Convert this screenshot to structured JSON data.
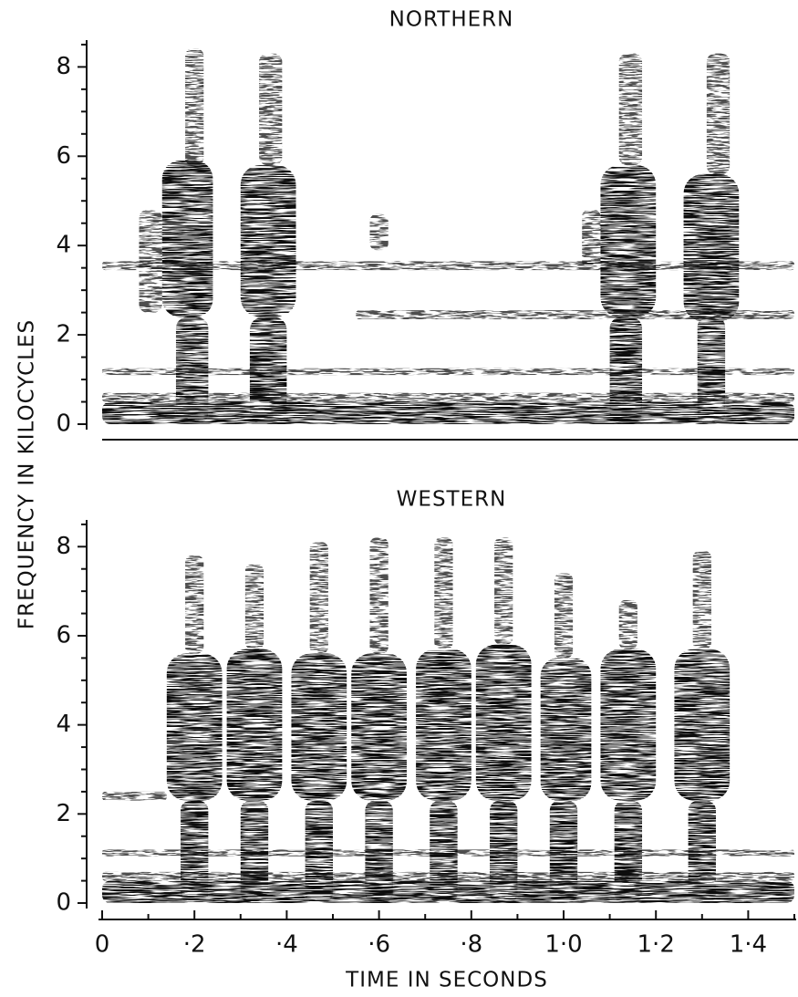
{
  "chart_data": [
    {
      "type": "spectrogram",
      "title": "NORTHERN",
      "ylabel": "FREQUENCY IN KILOCYCLES",
      "xlim": [
        0,
        1.5
      ],
      "ylim": [
        0,
        8.6
      ],
      "yticks": [
        0,
        2,
        4,
        6,
        8
      ],
      "yminorticks": [
        0.5,
        1,
        1.5,
        2.5,
        3,
        3.5,
        4.5,
        5,
        5.5,
        6.5,
        7,
        7.5,
        8.5
      ],
      "dense": [
        [
          0.13,
          0.24,
          2.4,
          5.9
        ],
        [
          0.3,
          0.42,
          2.4,
          5.8
        ],
        [
          1.08,
          1.2,
          2.4,
          5.8
        ],
        [
          1.26,
          1.38,
          2.3,
          5.6
        ],
        [
          0.16,
          0.23,
          0,
          2.4
        ],
        [
          0.32,
          0.4,
          0,
          2.4
        ],
        [
          1.1,
          1.17,
          0,
          2.4
        ],
        [
          1.29,
          1.35,
          0,
          2.4
        ],
        [
          0,
          1.5,
          0,
          0.5
        ]
      ],
      "sparse": [
        [
          0.18,
          0.22,
          5.8,
          8.4
        ],
        [
          0.34,
          0.39,
          5.8,
          8.3
        ],
        [
          1.12,
          1.17,
          5.8,
          8.3
        ],
        [
          1.31,
          1.36,
          5.6,
          8.3
        ],
        [
          0,
          1.5,
          3.45,
          3.65
        ],
        [
          0.55,
          1.5,
          2.35,
          2.55
        ],
        [
          0,
          1.5,
          1.1,
          1.25
        ],
        [
          0,
          1.5,
          0.5,
          0.7
        ],
        [
          0.58,
          0.62,
          3.9,
          4.7
        ],
        [
          0.08,
          0.13,
          2.5,
          4.8
        ],
        [
          1.04,
          1.08,
          3.5,
          4.8
        ]
      ]
    },
    {
      "type": "spectrogram",
      "title": "WESTERN",
      "xlabel": "TIME IN SECONDS",
      "xlim": [
        0,
        1.5
      ],
      "ylim": [
        0,
        8.6
      ],
      "yticks": [
        0,
        2,
        4,
        6,
        8
      ],
      "yminorticks": [
        0.5,
        1,
        1.5,
        2.5,
        3,
        3.5,
        4.5,
        5,
        5.5,
        6.5,
        7,
        7.5,
        8.5
      ],
      "xticks": [
        0,
        {
          "value": 0.2,
          "label": "·2"
        },
        {
          "value": 0.4,
          "label": "·4"
        },
        {
          "value": 0.6,
          "label": "·6"
        },
        {
          "value": 0.8,
          "label": "·8"
        },
        {
          "value": 1.0,
          "label": "1·0"
        },
        {
          "value": 1.2,
          "label": "1·2"
        },
        {
          "value": 1.4,
          "label": "1·4"
        }
      ],
      "xminorticks": [
        0.1,
        0.3,
        0.5,
        0.7,
        0.9,
        1.1,
        1.3,
        1.5
      ],
      "dense": [
        [
          0.14,
          0.26,
          2.3,
          5.6
        ],
        [
          0.27,
          0.39,
          2.3,
          5.7
        ],
        [
          0.41,
          0.53,
          2.3,
          5.6
        ],
        [
          0.54,
          0.66,
          2.3,
          5.6
        ],
        [
          0.68,
          0.8,
          2.3,
          5.7
        ],
        [
          0.81,
          0.93,
          2.3,
          5.8
        ],
        [
          0.95,
          1.06,
          2.3,
          5.5
        ],
        [
          1.08,
          1.2,
          2.3,
          5.7
        ],
        [
          1.24,
          1.36,
          2.3,
          5.7
        ],
        [
          0.17,
          0.23,
          0,
          2.3
        ],
        [
          0.3,
          0.36,
          0,
          2.3
        ],
        [
          0.44,
          0.5,
          0,
          2.3
        ],
        [
          0.57,
          0.63,
          0,
          2.3
        ],
        [
          0.71,
          0.77,
          0,
          2.3
        ],
        [
          0.84,
          0.9,
          0,
          2.3
        ],
        [
          0.97,
          1.03,
          0,
          2.3
        ],
        [
          1.11,
          1.17,
          0,
          2.3
        ],
        [
          1.27,
          1.33,
          0,
          2.3
        ],
        [
          0,
          1.5,
          0,
          0.5
        ]
      ],
      "sparse": [
        [
          0.18,
          0.22,
          5.6,
          7.8
        ],
        [
          0.31,
          0.35,
          5.7,
          7.6
        ],
        [
          0.45,
          0.49,
          5.6,
          8.1
        ],
        [
          0.58,
          0.62,
          5.6,
          8.2
        ],
        [
          0.72,
          0.76,
          5.7,
          8.2
        ],
        [
          0.85,
          0.89,
          5.8,
          8.2
        ],
        [
          0.98,
          1.02,
          5.5,
          7.4
        ],
        [
          1.12,
          1.16,
          5.7,
          6.8
        ],
        [
          1.28,
          1.32,
          5.7,
          7.9
        ],
        [
          0,
          0.14,
          2.3,
          2.5
        ],
        [
          0,
          1.5,
          1.05,
          1.2
        ],
        [
          0,
          1.5,
          0.5,
          0.7
        ]
      ]
    }
  ]
}
